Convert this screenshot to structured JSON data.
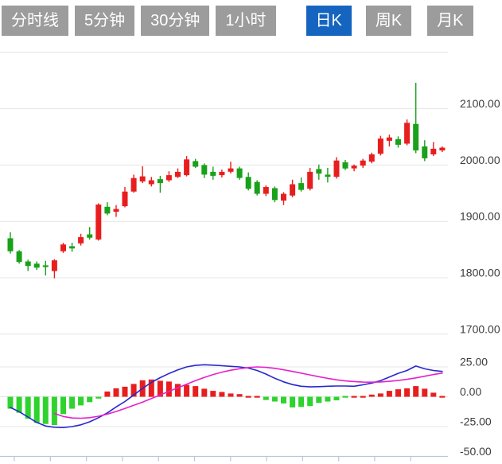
{
  "tabbar": {
    "tabs": [
      {
        "id": "timeline",
        "label": "分时线",
        "active": false
      },
      {
        "id": "5min",
        "label": "5分钟",
        "active": false
      },
      {
        "id": "30min",
        "label": "30分钟",
        "active": false
      },
      {
        "id": "1hour",
        "label": "1小时",
        "active": false
      },
      {
        "id": "daily",
        "label": "日K",
        "active": true
      },
      {
        "id": "weekly",
        "label": "周K",
        "active": false
      },
      {
        "id": "monthly",
        "label": "月K",
        "active": false
      }
    ],
    "active_bg": "#1565c0",
    "inactive_bg": "#9c9c9c",
    "text_color": "#ffffff"
  },
  "chart_data": [
    {
      "type": "candlestick",
      "title": "日K (daily K-line)",
      "up_color": "#e81e1e",
      "down_color": "#19a119",
      "grid": true,
      "y_axis": {
        "side": "right",
        "tick_labels": [
          "2100.00",
          "2000.00",
          "1900.00",
          "1800.00",
          "1700.00"
        ],
        "tick_values": [
          2100,
          2000,
          1900,
          1800,
          1700
        ],
        "grid_values": [
          2200,
          2100,
          2000,
          1900,
          1800,
          1700
        ],
        "ylim": [
          1690,
          2210
        ]
      },
      "candles_format": [
        "open",
        "high",
        "low",
        "close"
      ],
      "candles": [
        [
          1870,
          1881,
          1843,
          1847
        ],
        [
          1847,
          1849,
          1825,
          1828
        ],
        [
          1829,
          1832,
          1812,
          1821
        ],
        [
          1825,
          1829,
          1814,
          1818
        ],
        [
          1822,
          1830,
          1804,
          1819
        ],
        [
          1812,
          1833,
          1799,
          1831
        ],
        [
          1847,
          1862,
          1844,
          1859
        ],
        [
          1856,
          1862,
          1846,
          1852
        ],
        [
          1861,
          1878,
          1857,
          1872
        ],
        [
          1877,
          1890,
          1868,
          1871
        ],
        [
          1868,
          1932,
          1866,
          1930
        ],
        [
          1926,
          1934,
          1911,
          1914
        ],
        [
          1917,
          1929,
          1908,
          1922
        ],
        [
          1927,
          1961,
          1925,
          1953
        ],
        [
          1953,
          1983,
          1951,
          1977
        ],
        [
          1971,
          1998,
          1968,
          1980
        ],
        [
          1966,
          1979,
          1962,
          1973
        ],
        [
          1975,
          1981,
          1951,
          1968
        ],
        [
          1973,
          1989,
          1970,
          1982
        ],
        [
          1979,
          1994,
          1977,
          1988
        ],
        [
          1982,
          2016,
          1980,
          2010
        ],
        [
          2007,
          2011,
          1995,
          1997
        ],
        [
          2000,
          2003,
          1977,
          1983
        ],
        [
          1988,
          1997,
          1974,
          1981
        ],
        [
          1982,
          1992,
          1978,
          1988
        ],
        [
          1988,
          2006,
          1985,
          1994
        ],
        [
          1994,
          1997,
          1974,
          1977
        ],
        [
          1979,
          1987,
          1955,
          1958
        ],
        [
          1970,
          1973,
          1946,
          1949
        ],
        [
          1949,
          1964,
          1945,
          1961
        ],
        [
          1959,
          1962,
          1934,
          1938
        ],
        [
          1937,
          1952,
          1929,
          1949
        ],
        [
          1946,
          1974,
          1943,
          1966
        ],
        [
          1968,
          1978,
          1953,
          1956
        ],
        [
          1958,
          1995,
          1955,
          1988
        ],
        [
          1993,
          2001,
          1974,
          1985
        ],
        [
          1983,
          1995,
          1969,
          1979
        ],
        [
          1979,
          2014,
          1976,
          2008
        ],
        [
          2005,
          2009,
          1991,
          1994
        ],
        [
          1994,
          2001,
          1989,
          1999
        ],
        [
          1999,
          2011,
          1995,
          2008
        ],
        [
          2006,
          2022,
          2003,
          2019
        ],
        [
          2020,
          2052,
          2017,
          2047
        ],
        [
          2043,
          2054,
          2033,
          2049
        ],
        [
          2046,
          2051,
          2031,
          2036
        ],
        [
          2038,
          2081,
          2035,
          2075
        ],
        [
          2073,
          2146,
          2021,
          2026
        ],
        [
          2033,
          2044,
          2007,
          2012
        ],
        [
          2019,
          2041,
          2016,
          2029
        ],
        [
          2026,
          2033,
          2023,
          2031
        ]
      ]
    },
    {
      "type": "macd",
      "title": "MACD indicator",
      "y_axis": {
        "side": "right",
        "tick_labels": [
          "25.00",
          "0.00",
          "-25.00",
          "-50.00"
        ],
        "tick_values": [
          25,
          0,
          -25,
          -50
        ],
        "grid_values": [
          25,
          0,
          -25
        ],
        "ylim": [
          -55,
          30
        ]
      },
      "hist_up_color": "#e81e1e",
      "hist_down_color": "#2ed32e",
      "dif_color": "#2727cf",
      "dea_color": "#e620cb",
      "histogram": [
        -10,
        -13.4,
        -18.3,
        -21.9,
        -22.8,
        -23.7,
        -14.5,
        -10,
        -7.3,
        -4.5,
        -1.5,
        4.4,
        7.1,
        8.4,
        10.7,
        13.8,
        14.5,
        13.4,
        12.7,
        10.7,
        10,
        8.9,
        6.7,
        4.9,
        4,
        2.7,
        2.2,
        1.1,
        0.4,
        -2.7,
        -4,
        -5.6,
        -8.9,
        -8.5,
        -7.8,
        -5.2,
        -4,
        -3,
        -0.6,
        0.3,
        0.5,
        1.8,
        2.7,
        4.9,
        6.3,
        7.1,
        8.9,
        6.7,
        3.4,
        0.4
      ],
      "dif": [
        -9,
        -12.5,
        -17,
        -21.5,
        -24.5,
        -25.5,
        -25.8,
        -25,
        -23.5,
        -21,
        -17.5,
        -13.5,
        -8.5,
        -4,
        1.5,
        7,
        12,
        16,
        19.5,
        22.5,
        25,
        26.3,
        26.8,
        26.5,
        26,
        25.5,
        25,
        24,
        22,
        19,
        15.5,
        12.5,
        10.2,
        8.8,
        8.3,
        8.5,
        8.8,
        9,
        9,
        8.8,
        10,
        11.5,
        13.5,
        16.5,
        19.6,
        22,
        25.7,
        23.4,
        22,
        21.2
      ],
      "dea": [
        null,
        null,
        null,
        null,
        null,
        -14,
        -16.5,
        -17.8,
        -18,
        -17.5,
        -16.3,
        -14.5,
        -12.3,
        -9.8,
        -7.2,
        -4.5,
        -1.5,
        1.5,
        4.5,
        7.5,
        10.5,
        13.5,
        16.2,
        18.6,
        20.6,
        22.2,
        23.5,
        24.5,
        25,
        24.6,
        23.8,
        22.6,
        21.2,
        19.8,
        18.3,
        16.8,
        15.4,
        14.2,
        13.3,
        12.7,
        12.3,
        12.2,
        12.4,
        12.9,
        13.6,
        14.6,
        15.8,
        17.2,
        18.6,
        19.8
      ]
    }
  ],
  "style": {
    "grid_color": "#e4e4e4",
    "axis_line_color": "#bcc6da",
    "label_color": "#3c3c3c",
    "background": "#ffffff"
  }
}
